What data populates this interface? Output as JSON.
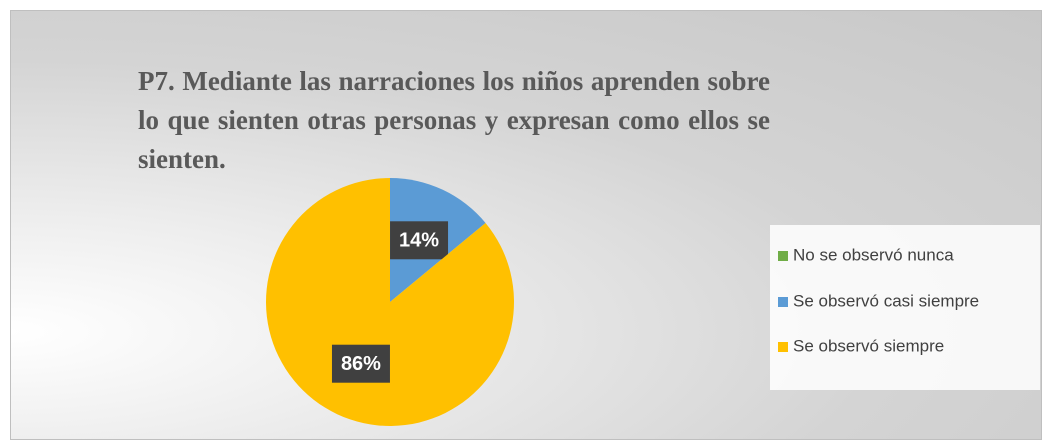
{
  "chart_data": {
    "type": "pie",
    "title": "P7. Mediante las narraciones los niños aprenden sobre lo que sienten otras personas y expresan como ellos se sienten.",
    "categories": [
      "No se observó nunca",
      "Se observó casi siempre",
      "Se observó siempre"
    ],
    "values": [
      0,
      14,
      86
    ],
    "value_labels": [
      null,
      "14%",
      "86%"
    ],
    "colors": [
      "#70ad47",
      "#5b9bd5",
      "#ffc000"
    ],
    "legend": "right"
  }
}
